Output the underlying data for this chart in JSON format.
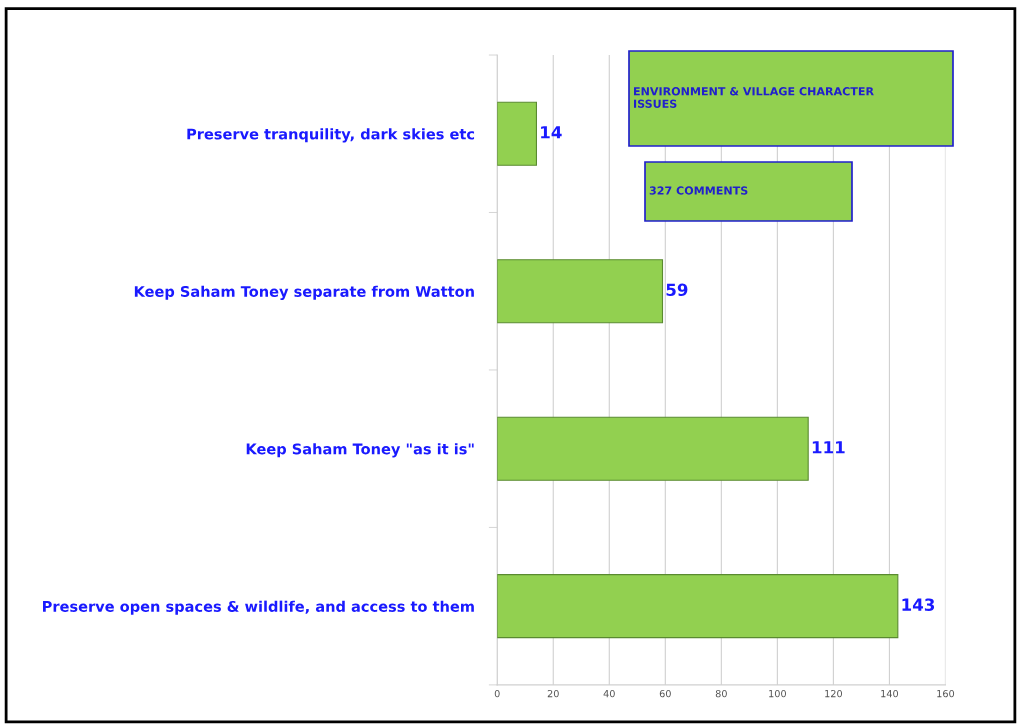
{
  "chart_data": {
    "type": "bar",
    "orientation": "horizontal",
    "categories": [
      "Preserve tranquility, dark skies etc",
      "Keep Saham Toney separate from Watton",
      "Keep Saham Toney \"as it is\"",
      "Preserve open spaces & wildlife, and access to them"
    ],
    "values": [
      14,
      59,
      111,
      143
    ],
    "color": "#92d050",
    "xlim": [
      0,
      160
    ],
    "xticks": [
      0,
      20,
      40,
      60,
      80,
      100,
      120,
      140,
      160
    ],
    "grid": "x",
    "data_labels": true,
    "annotations": [
      "ENVIRONMENT & VILLAGE CHARACTER\nISSUES",
      "327 COMMENTS"
    ]
  }
}
